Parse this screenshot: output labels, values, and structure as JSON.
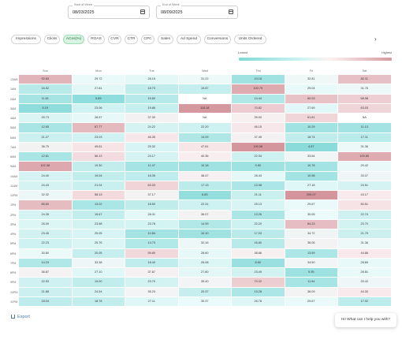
{
  "header": {
    "start_week": {
      "label": "Start of Week",
      "value": "08/03/2025",
      "icon": "calendar-icon"
    },
    "end_week": {
      "label": "End of Week",
      "value": "08/09/2025",
      "icon": "calendar-icon"
    }
  },
  "metric_tabs": [
    {
      "label": "Impressions",
      "active": false
    },
    {
      "label": "Clicks",
      "active": false
    },
    {
      "label": "ACos(%)",
      "active": true
    },
    {
      "label": "ROAS",
      "active": false
    },
    {
      "label": "CVR",
      "active": false
    },
    {
      "label": "CTR",
      "active": false
    },
    {
      "label": "CPC",
      "active": false
    },
    {
      "label": "Sales",
      "active": false
    },
    {
      "label": "Ad Spend",
      "active": false
    },
    {
      "label": "Conversions",
      "active": false
    },
    {
      "label": "Units Ordered",
      "active": false
    }
  ],
  "tabs_next_icon": "chevron-right-icon",
  "legend": {
    "low": "Lowest",
    "high": "Highest",
    "low_color": "#7fd9d9",
    "high_color": "#d49a9e"
  },
  "heatmap": {
    "days": [
      "Sun",
      "Mon",
      "Tue",
      "Wed",
      "Thu",
      "Fri",
      "Sat"
    ],
    "hours": [
      "12AM",
      "1AM",
      "2AM",
      "3AM",
      "4AM",
      "5AM",
      "6AM",
      "7AM",
      "8AM",
      "9AM",
      "10AM",
      "11AM",
      "12PM",
      "1PM",
      "2PM",
      "3PM",
      "4PM",
      "5PM",
      "6PM",
      "7PM",
      "8PM",
      "9PM",
      "10PM",
      "11PM"
    ],
    "values": [
      [
        "92.83",
        "29.72",
        "28.15",
        "31.22",
        "10.18",
        "32.81",
        "82.11"
      ],
      [
        "16.52",
        "27.81",
        "18.73",
        "19.87",
        "100.79",
        "29.04",
        "31.76"
      ],
      [
        "11.61",
        "5.89",
        "15.80",
        "NA",
        "14.44",
        "80.03",
        "68.98"
      ],
      [
        "5.19",
        "23.06",
        "19.86",
        "118.18",
        "70.82",
        "27.69",
        "63.03"
      ],
      [
        "25.73",
        "28.57",
        "37.30",
        "NA",
        "39.00",
        "61.81",
        "NA"
      ],
      [
        "12.65",
        "87.77",
        "24.22",
        "22.20",
        "46.15",
        "10.29",
        "11.13"
      ],
      [
        "21.27",
        "23.03",
        "46.35",
        "14.09",
        "37.45",
        "18.74",
        "17.11"
      ],
      [
        "36.75",
        "49.61",
        "25.32",
        "47.61",
        "190.08",
        "4.57",
        "31.36"
      ],
      [
        "12.61",
        "56.13",
        "24.17",
        "40.36",
        "22.34",
        "33.64",
        "100.80"
      ],
      [
        "102.38",
        "19.30",
        "11.47",
        "10.18",
        "9.80",
        "10.78",
        "29.42"
      ],
      [
        "24.40",
        "19.04",
        "18.35",
        "38.47",
        "28.43",
        "10.98",
        "33.07"
      ],
      [
        "24.43",
        "21.04",
        "63.33",
        "17.13",
        "13.38",
        "27.18",
        "24.51"
      ],
      [
        "32.32",
        "58.13",
        "37.17",
        "6.83",
        "21.11",
        "209.07",
        "43.17"
      ],
      [
        "85.60",
        "13.02",
        "18.50",
        "22.31",
        "25.13",
        "29.67",
        "50.51"
      ],
      [
        "24.28",
        "19.67",
        "28.31",
        "36.07",
        "13.26",
        "30.05",
        "22.74"
      ],
      [
        "26.09",
        "23.58",
        "23.78",
        "14.99",
        "22.20",
        "84.23",
        "23.70"
      ],
      [
        "23.45",
        "25.05",
        "10.84",
        "10.10",
        "17.03",
        "34.72",
        "21.79"
      ],
      [
        "22.23",
        "25.76",
        "14.73",
        "32.16",
        "16.80",
        "36.06",
        "31.36"
      ],
      [
        "30.80",
        "20.05",
        "59.80",
        "28.60",
        "38.66",
        "13.59",
        "44.86"
      ],
      [
        "14.23",
        "33.38",
        "18.40",
        "26.08",
        "8.60",
        "34.50",
        "28.89"
      ],
      [
        "36.87",
        "27.10",
        "37.87",
        "27.80",
        "23.49",
        "9.35",
        "28.81"
      ],
      [
        "22.53",
        "19.00",
        "23.70",
        "35.40",
        "70.22",
        "11.94",
        "33.42"
      ],
      [
        "21.88",
        "24.54",
        "35.20",
        "20.37",
        "13.28",
        "36.09",
        "44.30"
      ],
      [
        "18.04",
        "18.78",
        "27.11",
        "30.37",
        "26.78",
        "29.67",
        "17.92"
      ]
    ]
  },
  "footer": {
    "export_label": "Export",
    "export_icon": "download-icon"
  },
  "chat": {
    "text": "Hi! What can I help you with?"
  }
}
